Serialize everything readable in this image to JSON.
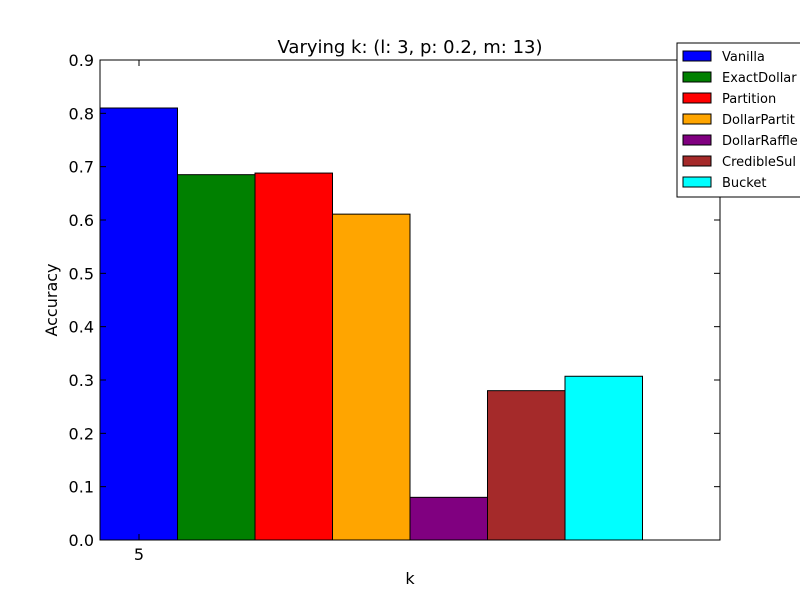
{
  "chart_data": {
    "type": "bar",
    "title": "Varying k: (l: 3, p: 0.2, m: 13)",
    "xlabel": "k",
    "ylabel": "Accuracy",
    "ylim": [
      0,
      0.9
    ],
    "yticks": [
      "0.0",
      "0.1",
      "0.2",
      "0.3",
      "0.4",
      "0.5",
      "0.6",
      "0.7",
      "0.8",
      "0.9"
    ],
    "categories": [
      "5"
    ],
    "legend_position": "top-right",
    "grid": false,
    "series": [
      {
        "name": "Vanilla",
        "color": "#0000ff",
        "values": [
          0.81
        ]
      },
      {
        "name": "ExactDollar",
        "color": "#008000",
        "values": [
          0.685
        ]
      },
      {
        "name": "Partition",
        "color": "#ff0000",
        "values": [
          0.688
        ]
      },
      {
        "name": "DollarPartit",
        "color": "#ffa500",
        "values": [
          0.611
        ]
      },
      {
        "name": "DollarRaffle",
        "color": "#800080",
        "values": [
          0.08
        ]
      },
      {
        "name": "CredibleSul",
        "color": "#a52a2a",
        "values": [
          0.28
        ]
      },
      {
        "name": "Bucket",
        "color": "#00ffff",
        "values": [
          0.307
        ]
      }
    ]
  }
}
